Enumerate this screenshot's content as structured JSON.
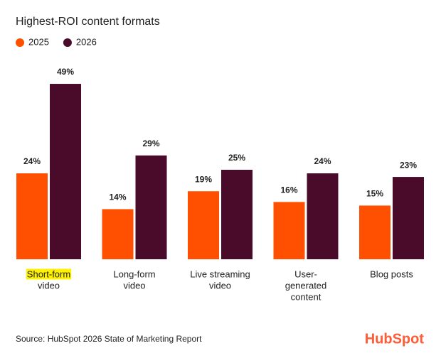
{
  "chart_data": {
    "type": "bar",
    "title": "Highest-ROI content formats",
    "categories": [
      [
        "Short-form",
        "video"
      ],
      [
        "Long-form",
        "video"
      ],
      [
        "Live streaming",
        "video"
      ],
      [
        "User-",
        "generated",
        "content"
      ],
      [
        "Blog posts"
      ]
    ],
    "highlight_category": 0,
    "series": [
      {
        "name": "2025",
        "color": "#ff4f00",
        "values": [
          24,
          14,
          19,
          16,
          15
        ],
        "value_labels": [
          "24%",
          "14%",
          "19%",
          "16%",
          "15%"
        ]
      },
      {
        "name": "2026",
        "color": "#4a0a2a",
        "values": [
          49,
          29,
          25,
          24,
          23
        ],
        "value_labels": [
          "49%",
          "29%",
          "25%",
          "24%",
          "23%"
        ]
      }
    ],
    "ylim": [
      0,
      50
    ],
    "source": "Source: HubSpot 2026 State of Marketing Report",
    "logo": "HubSpot"
  }
}
